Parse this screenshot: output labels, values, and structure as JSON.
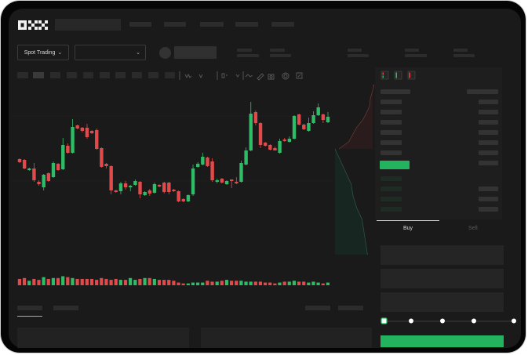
{
  "header": {
    "logo": "OKX",
    "nav_items": [
      "",
      "",
      "",
      "",
      ""
    ]
  },
  "market_bar": {
    "trading_mode_dropdown": "Spot Trading",
    "pair_dropdown": ""
  },
  "order_form": {
    "tabs": [
      {
        "label": "Buy",
        "active": true
      },
      {
        "label": "Sell",
        "active": false
      }
    ],
    "slider_percent": 0,
    "slider_stops": [
      0,
      25,
      50,
      75,
      100
    ]
  },
  "colors": {
    "up": "#2ebd67",
    "down": "#e04a4a",
    "background": "#1a1a1a",
    "buy_button": "#23b35f"
  },
  "chart_data": {
    "type": "candlestick",
    "candles": [
      [
        97,
        98,
        92,
        93
      ],
      [
        96,
        97,
        84,
        85
      ],
      [
        83,
        86,
        82,
        85
      ],
      [
        85,
        92,
        68,
        70
      ],
      [
        68,
        70,
        63,
        65
      ],
      [
        61,
        78,
        57,
        77
      ],
      [
        79,
        80,
        68,
        69
      ],
      [
        74,
        94,
        73,
        92
      ],
      [
        91,
        92,
        82,
        83
      ],
      [
        84,
        124,
        83,
        115
      ],
      [
        114,
        117,
        104,
        105
      ],
      [
        105,
        148,
        104,
        138
      ],
      [
        140,
        141,
        135,
        136
      ],
      [
        137,
        138,
        131,
        133
      ],
      [
        137,
        142,
        123,
        125
      ],
      [
        133,
        134,
        129,
        130
      ],
      [
        134,
        136,
        109,
        110
      ],
      [
        111,
        112,
        86,
        87
      ],
      [
        91,
        92,
        85,
        88
      ],
      [
        88,
        89,
        52,
        57
      ],
      [
        57,
        58,
        54,
        55
      ],
      [
        56,
        68,
        52,
        66
      ],
      [
        66,
        69,
        58,
        61
      ],
      [
        61,
        64,
        56,
        63
      ],
      [
        64,
        71,
        63,
        69
      ],
      [
        68,
        69,
        47,
        52
      ],
      [
        51,
        56,
        50,
        55
      ],
      [
        57,
        59,
        50,
        53
      ],
      [
        54,
        67,
        53,
        65
      ],
      [
        64,
        65,
        61,
        62
      ],
      [
        67,
        68,
        53,
        55
      ],
      [
        67,
        68,
        52,
        55
      ],
      [
        58,
        59,
        55,
        56
      ],
      [
        56,
        57,
        42,
        43
      ],
      [
        46,
        47,
        42,
        43
      ],
      [
        43,
        52,
        42,
        51
      ],
      [
        52,
        90,
        50,
        85
      ],
      [
        87,
        93,
        86,
        91
      ],
      [
        90,
        105,
        89,
        100
      ],
      [
        99,
        100,
        87,
        88
      ],
      [
        94,
        98,
        68,
        70
      ],
      [
        68,
        72,
        66,
        70
      ],
      [
        72,
        73,
        66,
        67
      ],
      [
        65,
        70,
        64,
        69
      ],
      [
        71,
        71,
        60,
        70
      ],
      [
        68,
        74,
        65,
        66
      ],
      [
        68,
        95,
        67,
        92
      ],
      [
        90,
        112,
        89,
        108
      ],
      [
        108,
        170,
        107,
        155
      ],
      [
        157,
        159,
        140,
        143
      ],
      [
        143,
        144,
        111,
        115
      ],
      [
        118,
        119,
        113,
        114
      ],
      [
        115,
        116,
        108,
        109
      ],
      [
        111,
        113,
        108,
        108
      ],
      [
        105,
        123,
        104,
        120
      ],
      [
        122,
        124,
        119,
        120
      ],
      [
        119,
        126,
        118,
        123
      ],
      [
        123,
        153,
        122,
        152
      ],
      [
        154,
        155,
        140,
        141
      ],
      [
        141,
        142,
        134,
        135
      ],
      [
        133,
        150,
        132,
        143
      ],
      [
        143,
        158,
        142,
        153
      ],
      [
        153,
        168,
        152,
        163
      ],
      [
        154,
        155,
        143,
        147
      ],
      [
        144,
        157,
        143,
        151
      ]
    ],
    "volume": [
      7,
      8,
      5,
      7,
      6,
      9,
      7,
      8,
      8,
      10,
      9,
      8,
      7,
      7,
      7,
      7,
      6,
      8,
      7,
      6,
      7,
      6,
      6,
      8,
      6,
      7,
      8,
      8,
      7,
      6,
      6,
      6,
      5,
      3,
      2,
      2,
      3,
      3,
      3,
      5,
      4,
      4,
      5,
      6,
      5,
      5,
      5,
      4,
      4,
      4,
      4,
      3,
      3,
      2,
      3,
      4,
      4,
      5,
      4,
      4,
      3,
      4,
      3,
      2,
      3
    ],
    "order_book_depth": {
      "asks": [
        0.0,
        0.05,
        0.1,
        0.12,
        0.2,
        0.3,
        0.45,
        0.55,
        0.65,
        0.9
      ],
      "bids": [
        0.0,
        0.15,
        0.3,
        0.45,
        0.5,
        0.6,
        0.75,
        0.8,
        0.85,
        0.9
      ]
    }
  }
}
